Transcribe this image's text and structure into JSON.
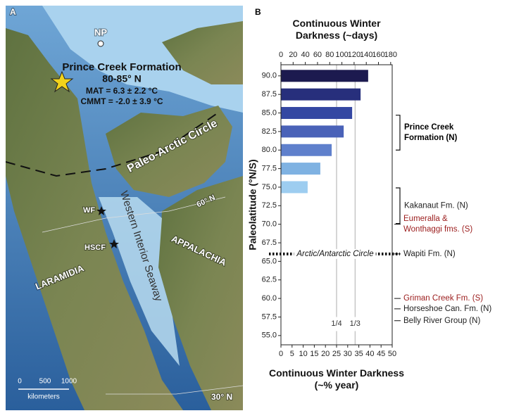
{
  "map": {
    "panel_label": "A",
    "labels": {
      "np": "NP",
      "formation": "Prince Creek Formation",
      "latitude": "80-85° N",
      "mat": "MAT = 6.3 ± 2.2 °C",
      "cmmt": "CMMT = -2.0 ± 3.9 °C",
      "arctic_circle": "Paleo-Arctic Circle",
      "seaway": "Western Interior Seaway",
      "lat60": "60° N",
      "wf": "WF",
      "hscf": "HSCF",
      "appalachia": "APPALACHIA",
      "laramidia": "LARAMIDIA",
      "lat30": "30° N",
      "scale_0": "0",
      "scale_500": "500",
      "scale_1000": "1000",
      "scale_unit": "kilometers"
    }
  },
  "chart_data": {
    "type": "bar",
    "orientation": "horizontal",
    "panel_label": "B",
    "title_top": "Continuous Winter Darkness (~days)",
    "xlabel": "Continuous Winter Darkness (~% year)",
    "ylabel": "Paleolatitude (°N/S)",
    "y": [
      90,
      87.5,
      85,
      82.5,
      80,
      77.5,
      75
    ],
    "values": [
      39.2,
      35.8,
      32,
      28.2,
      22.8,
      17.7,
      12
    ],
    "colors": [
      "#1c1a4f",
      "#272f7c",
      "#3447a2",
      "#4a62b8",
      "#5f80cc",
      "#7fb2e2",
      "#9dcdf0"
    ],
    "xlim": [
      0,
      50
    ],
    "xticks": [
      0,
      5,
      10,
      15,
      20,
      25,
      30,
      35,
      40,
      45,
      50
    ],
    "x2lim": [
      0,
      182.5
    ],
    "x2ticks": [
      0,
      20,
      40,
      60,
      80,
      100,
      120,
      140,
      160,
      180
    ],
    "ylim": [
      53.75,
      91.5
    ],
    "yticks": [
      {
        "value": 55,
        "label": "55.0"
      },
      {
        "value": 57.5,
        "label": "57.5"
      },
      {
        "value": 60,
        "label": "60.0"
      },
      {
        "value": 62.5,
        "label": "62.5"
      },
      {
        "value": 65,
        "label": "65.0"
      },
      {
        "value": 67.5,
        "label": "67.5"
      },
      {
        "value": 70,
        "label": "70.0"
      },
      {
        "value": 72.5,
        "label": "72.5"
      },
      {
        "value": 75,
        "label": "75.0"
      },
      {
        "value": 77.5,
        "label": "77.5"
      },
      {
        "value": 80,
        "label": "80.0"
      },
      {
        "value": 82.5,
        "label": "82.5"
      },
      {
        "value": 85,
        "label": "85.0"
      },
      {
        "value": 87.5,
        "label": "87.5"
      },
      {
        "value": 90,
        "label": "90.0"
      }
    ],
    "reference_lines": [
      {
        "value": 25,
        "label": "1/4"
      },
      {
        "value": 33.3,
        "label": "1/3"
      }
    ],
    "circle_line": {
      "value": 66,
      "label": "Arctic/Antarctic Circle"
    },
    "brackets": [
      {
        "lines": [
          "Prince Creek",
          "Formation (N)"
        ],
        "range": [
          80,
          84.7
        ],
        "color": "#000000",
        "bold": true
      },
      {
        "lines": [
          "Kakanaut Fm. (N)"
        ],
        "range": [
          70.1,
          74.9
        ],
        "color": "#222222",
        "bold": false
      }
    ],
    "pointers": [
      {
        "lines": [
          "Eumeralla &",
          "Wonthaggi fms. (S)"
        ],
        "lat": 70,
        "color": "#9b1c1c"
      },
      {
        "lines": [
          "Wapiti Fm. (N)"
        ],
        "lat": 66,
        "color": "#222222"
      },
      {
        "lines": [
          "Griman Creek Fm. (S)"
        ],
        "lat": 60,
        "color": "#9b1c1c"
      },
      {
        "lines": [
          "Horseshoe Can. Fm. (N)"
        ],
        "lat": 58.6,
        "color": "#222222"
      },
      {
        "lines": [
          "Belly River Group (N)"
        ],
        "lat": 57,
        "color": "#222222"
      }
    ]
  }
}
